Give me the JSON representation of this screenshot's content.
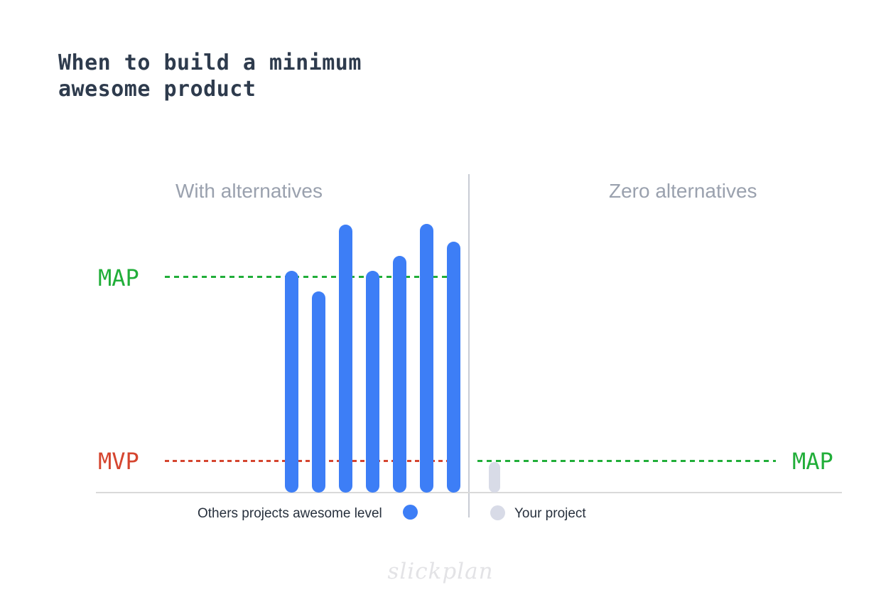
{
  "title": {
    "line1": "When to build a minimum",
    "line2": "awesome product"
  },
  "sections": {
    "left": {
      "header": "With alternatives"
    },
    "right": {
      "header": "Zero alternatives"
    }
  },
  "thresholds": {
    "map_left": {
      "label": "MAP",
      "color": "#21ae39"
    },
    "mvp": {
      "label": "MVP",
      "color": "#d5452f"
    },
    "map_right": {
      "label": "MAP",
      "color": "#21ae39"
    }
  },
  "legend": {
    "others_label": "Others projects awesome level",
    "your_label": "Your project"
  },
  "watermark": "slickplan",
  "colors": {
    "bar_blue": "#3d7ef6",
    "bar_gray": "#d8dbe7",
    "map_green": "#21ae39",
    "mvp_red": "#d5452f",
    "title_text": "#2e3b4d",
    "header_gray": "#9aa1ae",
    "legend_text": "#27303d",
    "axis_gray": "#d9d9d9",
    "divider_gray": "#c8ccd4",
    "watermark_gray": "#e3e3e6"
  },
  "chart_data": {
    "type": "bar",
    "units": "awesomeness (px above baseline)",
    "ylim": [
      0,
      393
    ],
    "grid": false,
    "legend_position": "bottom",
    "sections": [
      "With alternatives",
      "Zero alternatives"
    ],
    "series": [
      {
        "name": "Others projects awesome level",
        "color": "#3d7ef6",
        "values": [
          312,
          283,
          377,
          312,
          333,
          378,
          353
        ]
      },
      {
        "name": "Your project",
        "color": "#d8dbe7",
        "values": [
          43
        ]
      }
    ],
    "reference_lines": [
      {
        "label": "MAP",
        "side": "left",
        "value": 304,
        "color": "#21ae39",
        "style": "dashed"
      },
      {
        "label": "MVP",
        "side": "left",
        "value": 45,
        "color": "#d5452f",
        "style": "dashed"
      },
      {
        "label": "MAP",
        "side": "right",
        "value": 45,
        "color": "#21ae39",
        "style": "dashed"
      }
    ]
  }
}
